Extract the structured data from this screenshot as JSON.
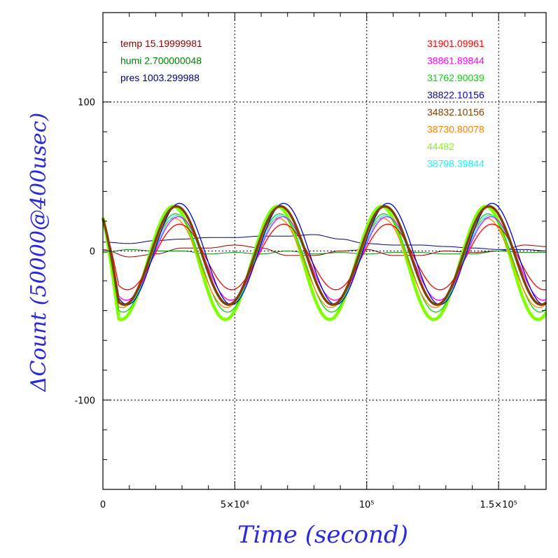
{
  "chart_data": {
    "type": "line",
    "xlabel": "Time (second)",
    "ylabel": "ΔCount (50000@400usec)",
    "xlim": [
      0,
      168000
    ],
    "ylim": [
      -160,
      160
    ],
    "grid": true,
    "x_ticks": [
      {
        "value": 0,
        "label": "0"
      },
      {
        "value": 50000,
        "label": "5×10⁴"
      },
      {
        "value": 100000,
        "label": "10⁵"
      },
      {
        "value": 150000,
        "label": "1.5×10⁵"
      }
    ],
    "y_ticks": [
      {
        "value": 100,
        "label": "100"
      },
      {
        "value": 0,
        "label": "0"
      },
      {
        "value": -100,
        "label": "-100"
      }
    ],
    "env_legend": [
      {
        "text": "temp 15.19999981",
        "color": "#8b0000"
      },
      {
        "text": "humi 2.700000048",
        "color": "#008000"
      },
      {
        "text": "pres 1003.299988",
        "color": "#000080"
      }
    ],
    "series": [
      {
        "name": "31901.09961",
        "color": "#ff0000",
        "amplitude": 22,
        "offset": -4,
        "phase": 0.0,
        "width": 1.3
      },
      {
        "name": "38861.89844",
        "color": "#ff00ff",
        "amplitude": 28,
        "offset": -5,
        "phase": 0.01,
        "width": 1.3
      },
      {
        "name": "31762.90039",
        "color": "#00dd00",
        "amplitude": 33,
        "offset": -8,
        "phase": 0.04,
        "width": 1.3
      },
      {
        "name": "38822.10156",
        "color": "#0000cc",
        "amplitude": 34,
        "offset": -2,
        "phase": 0.0,
        "width": 1.3
      },
      {
        "name": "34832.10156",
        "color": "#804000",
        "amplitude": 33,
        "offset": -3,
        "phase": 0.03,
        "width": 3.5
      },
      {
        "name": "38730.80078",
        "color": "#ff8000",
        "amplitude": 30,
        "offset": -8,
        "phase": 0.05,
        "width": 1.3
      },
      {
        "name": "44482",
        "color": "#80ff00",
        "amplitude": 38,
        "offset": -8,
        "phase": 0.06,
        "width": 4.5
      },
      {
        "name": "38798.39844",
        "color": "#00ffff",
        "amplitude": 30,
        "offset": -6,
        "phase": 0.02,
        "width": 1.3
      }
    ],
    "env_series": [
      {
        "name": "temp",
        "color": "#8b0000",
        "x": [
          0,
          10000,
          20000,
          30000,
          40000,
          50000,
          60000,
          70000,
          80000,
          90000,
          100000,
          110000,
          120000,
          130000,
          140000,
          150000,
          160000,
          168000
        ],
        "y": [
          1,
          -4,
          -2,
          2,
          2,
          4,
          2,
          -3,
          -3,
          0,
          1,
          -3,
          -3,
          0,
          -1,
          0,
          4,
          3
        ]
      },
      {
        "name": "humi",
        "color": "#008000",
        "x": [
          0,
          10000,
          20000,
          30000,
          40000,
          50000,
          60000,
          70000,
          80000,
          90000,
          100000,
          110000,
          120000,
          130000,
          140000,
          150000,
          160000,
          168000
        ],
        "y": [
          -1,
          1,
          0,
          0,
          -2,
          -1,
          -2,
          0,
          -2,
          -1,
          -2,
          -1,
          -1,
          -2,
          -2,
          0,
          -1,
          -1
        ]
      },
      {
        "name": "pres",
        "color": "#000080",
        "x": [
          0,
          10000,
          20000,
          30000,
          40000,
          50000,
          60000,
          70000,
          80000,
          90000,
          100000,
          110000,
          120000,
          130000,
          140000,
          150000,
          160000,
          168000
        ],
        "y": [
          6,
          5,
          7,
          8,
          9,
          9,
          10,
          10,
          11,
          8,
          5,
          4,
          4,
          3,
          2,
          1,
          1,
          0
        ]
      }
    ],
    "oscillation_period": 39500,
    "oscillation_start": 0
  }
}
